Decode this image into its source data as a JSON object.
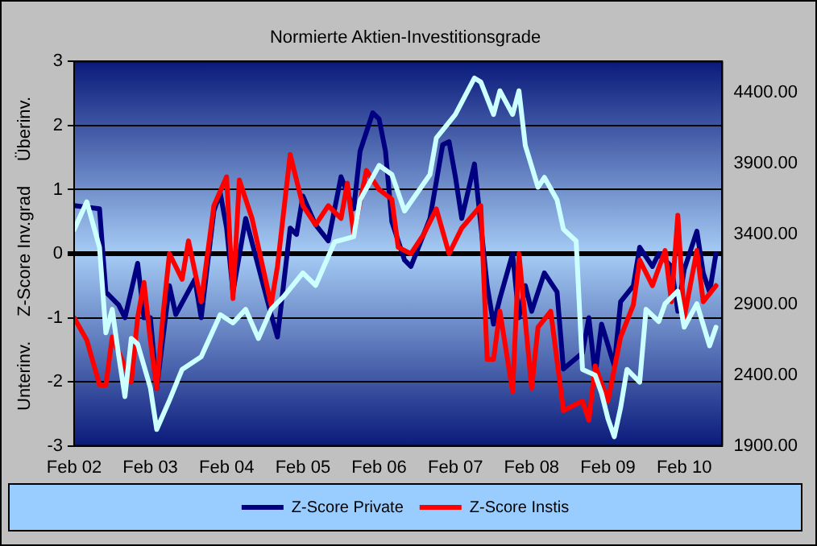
{
  "chart_data": {
    "type": "line",
    "title": "Normierte Aktien-Investitionsgrade",
    "ylabel": "Unterinv.     Z-Score Inv.grad     Überinv.",
    "xlim": [
      "2002-02",
      "2010-08"
    ],
    "xticks": [
      {
        "value": "2002-02",
        "label": "Feb 02"
      },
      {
        "value": "2003-02",
        "label": "Feb 03"
      },
      {
        "value": "2004-02",
        "label": "Feb 04"
      },
      {
        "value": "2005-02",
        "label": "Feb 05"
      },
      {
        "value": "2006-02",
        "label": "Feb 06"
      },
      {
        "value": "2007-02",
        "label": "Feb 07"
      },
      {
        "value": "2008-02",
        "label": "Feb 08"
      },
      {
        "value": "2009-02",
        "label": "Feb 09"
      },
      {
        "value": "2010-02",
        "label": "Feb 10"
      }
    ],
    "ylim": [
      -3,
      3
    ],
    "yticks": [
      -3,
      -2,
      -1,
      0,
      1,
      2,
      3
    ],
    "y2lim": [
      1900,
      4620
    ],
    "y2ticks": [
      {
        "value": 1900,
        "label": "1900.00"
      },
      {
        "value": 2400,
        "label": "2400.00"
      },
      {
        "value": 2900,
        "label": "2900.00"
      },
      {
        "value": 3400,
        "label": "3400.00"
      },
      {
        "value": 3900,
        "label": "3900.00"
      },
      {
        "value": 4400,
        "label": "4400.00"
      }
    ],
    "grid": "y",
    "legend": "bottom",
    "marker": "none",
    "line_style": "solid",
    "series": [
      {
        "name": "Z-Score Private",
        "color": "#000080",
        "x": [
          "2002-02",
          "2002-06",
          "2002-07",
          "2002-09",
          "2002-10",
          "2002-12",
          "2003-01",
          "2003-02",
          "2003-03",
          "2003-05",
          "2003-06",
          "2003-09",
          "2003-10",
          "2003-12",
          "2004-01",
          "2004-02",
          "2004-03",
          "2004-05",
          "2004-07",
          "2004-09",
          "2004-10",
          "2004-12",
          "2005-01",
          "2005-02",
          "2005-04",
          "2005-06",
          "2005-08",
          "2005-10",
          "2005-11",
          "2006-01",
          "2006-02",
          "2006-03",
          "2006-04",
          "2006-06",
          "2006-07",
          "2006-10",
          "2006-12",
          "2007-01",
          "2007-02",
          "2007-03",
          "2007-05",
          "2007-06",
          "2007-07",
          "2007-08",
          "2007-09",
          "2007-11",
          "2007-12",
          "2008-01",
          "2008-02",
          "2008-04",
          "2008-06",
          "2008-07",
          "2008-10",
          "2008-11",
          "2008-12",
          "2009-01",
          "2009-03",
          "2009-04",
          "2009-06",
          "2009-07",
          "2009-09",
          "2009-10",
          "2009-12",
          "2010-01",
          "2010-02",
          "2010-04",
          "2010-05",
          "2010-06",
          "2010-07"
        ],
        "values": [
          0.75,
          0.7,
          -0.6,
          -0.8,
          -1.0,
          -0.15,
          -1.0,
          -1.0,
          -2.1,
          -0.5,
          -0.95,
          -0.4,
          -1.0,
          0.67,
          0.95,
          0.4,
          -0.6,
          0.55,
          -0.2,
          -0.95,
          -1.3,
          0.4,
          0.3,
          0.9,
          0.45,
          0.2,
          1.2,
          0.7,
          1.6,
          2.2,
          2.1,
          1.6,
          0.5,
          -0.1,
          -0.2,
          0.55,
          1.7,
          1.75,
          1.2,
          0.55,
          1.4,
          0.45,
          -0.5,
          -1.1,
          -0.7,
          0.0,
          -1.0,
          -0.5,
          -0.9,
          -0.3,
          -0.6,
          -1.8,
          -1.55,
          -1.0,
          -1.9,
          -1.1,
          -1.75,
          -0.75,
          -0.5,
          0.1,
          -0.2,
          0.0,
          -0.2,
          -0.9,
          -0.25,
          0.35,
          -0.3,
          -0.6,
          0.0
        ]
      },
      {
        "name": "Z-Score Instis",
        "color": "#ff0000",
        "x": [
          "2002-02",
          "2002-04",
          "2002-06",
          "2002-07",
          "2002-08",
          "2002-11",
          "2002-12",
          "2003-01",
          "2003-02",
          "2003-03",
          "2003-04",
          "2003-05",
          "2003-07",
          "2003-08",
          "2003-10",
          "2003-12",
          "2004-02",
          "2004-03",
          "2004-04",
          "2004-06",
          "2004-09",
          "2004-10",
          "2004-12",
          "2005-02",
          "2005-04",
          "2005-06",
          "2005-08",
          "2005-09",
          "2005-10",
          "2005-12",
          "2006-02",
          "2006-04",
          "2006-05",
          "2006-07",
          "2006-09",
          "2006-11",
          "2007-01",
          "2007-03",
          "2007-06",
          "2007-07",
          "2007-08",
          "2007-09",
          "2007-11",
          "2007-12",
          "2008-02",
          "2008-03",
          "2008-05",
          "2008-07",
          "2008-10",
          "2008-11",
          "2008-12",
          "2009-02",
          "2009-04",
          "2009-06",
          "2009-07",
          "2009-09",
          "2009-11",
          "2009-12",
          "2010-01",
          "2010-02",
          "2010-04",
          "2010-05",
          "2010-07"
        ],
        "values": [
          -1.0,
          -1.35,
          -2.05,
          -2.05,
          -1.3,
          -2.0,
          -1.0,
          -0.45,
          -1.35,
          -2.1,
          -0.95,
          0.0,
          -0.4,
          0.2,
          -0.75,
          0.75,
          1.2,
          -0.7,
          1.15,
          0.55,
          -0.8,
          -0.2,
          1.55,
          0.75,
          0.45,
          0.75,
          0.55,
          1.1,
          0.3,
          1.3,
          1.0,
          0.85,
          0.1,
          0.0,
          0.3,
          0.7,
          0.0,
          0.4,
          0.75,
          -1.65,
          -1.65,
          -0.9,
          -2.15,
          0.0,
          -2.1,
          -1.15,
          -0.9,
          -2.45,
          -2.3,
          -2.6,
          -1.75,
          -2.3,
          -1.3,
          -0.8,
          -0.1,
          -0.5,
          0.05,
          -0.75,
          0.6,
          -1.0,
          0.05,
          -0.75,
          -0.5
        ]
      },
      {
        "color": "#ccffff",
        "axis": "y2",
        "x": [
          "2002-02",
          "2002-04",
          "2002-06",
          "2002-07",
          "2002-08",
          "2002-09",
          "2002-10",
          "2002-11",
          "2002-12",
          "2003-02",
          "2003-03",
          "2003-05",
          "2003-07",
          "2003-10",
          "2004-01",
          "2004-03",
          "2004-05",
          "2004-07",
          "2004-09",
          "2004-11",
          "2005-02",
          "2005-04",
          "2005-07",
          "2005-10",
          "2005-11",
          "2006-02",
          "2006-04",
          "2006-06",
          "2006-10",
          "2006-11",
          "2007-02",
          "2007-05",
          "2007-06",
          "2007-08",
          "2007-09",
          "2007-11",
          "2007-12",
          "2008-01",
          "2008-03",
          "2008-04",
          "2008-06",
          "2008-07",
          "2008-09",
          "2008-10",
          "2008-12",
          "2009-01",
          "2009-02",
          "2009-03",
          "2009-04",
          "2009-05",
          "2009-07",
          "2009-08",
          "2009-10",
          "2009-11",
          "2010-01",
          "2010-02",
          "2010-04",
          "2010-06",
          "2010-07"
        ],
        "values": [
          3430,
          3627,
          3305,
          2700,
          2866,
          2544,
          2248,
          2660,
          2620,
          2312,
          2016,
          2222,
          2441,
          2531,
          2828,
          2770,
          2866,
          2660,
          2866,
          2957,
          3124,
          3035,
          3343,
          3380,
          3640,
          3885,
          3820,
          3562,
          3820,
          4078,
          4245,
          4503,
          4475,
          4245,
          4413,
          4245,
          4413,
          4026,
          3730,
          3800,
          3640,
          3433,
          3350,
          2441,
          2400,
          2273,
          2093,
          1964,
          2170,
          2441,
          2350,
          2866,
          2780,
          2906,
          2995,
          2740,
          2906,
          2608,
          2740
        ]
      }
    ]
  }
}
